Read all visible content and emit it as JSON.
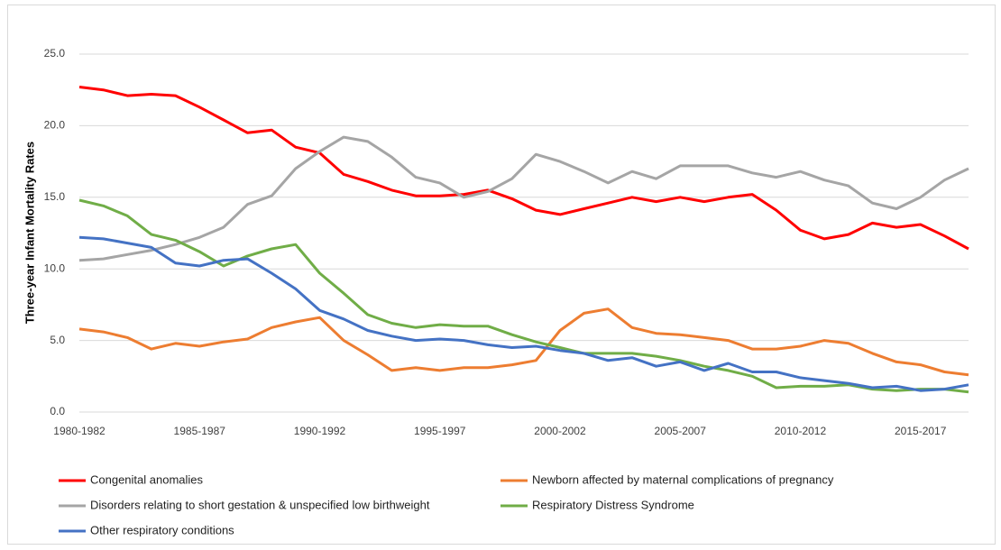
{
  "chart_data": {
    "type": "line",
    "y_label": "Three-year Infant Mortality Rates",
    "categories": [
      "1980-1982",
      null,
      null,
      null,
      null,
      "1985-1987",
      null,
      null,
      null,
      null,
      "1990-1992",
      null,
      null,
      null,
      null,
      "1995-1997",
      null,
      null,
      null,
      null,
      "2000-2002",
      null,
      null,
      null,
      null,
      "2005-2007",
      null,
      null,
      null,
      null,
      "2010-2012",
      null,
      null,
      null,
      null,
      "2015-2017",
      null,
      null
    ],
    "ylim": [
      0,
      25
    ],
    "yticks": [
      {
        "value": 0,
        "label": "0.0"
      },
      {
        "value": 5,
        "label": "5.0"
      },
      {
        "value": 10,
        "label": "10.0"
      },
      {
        "value": 15,
        "label": "15.0"
      },
      {
        "value": 20,
        "label": "20.0"
      },
      {
        "value": 25,
        "label": "25.0"
      }
    ],
    "grid": true,
    "legend": "bottom",
    "series": [
      {
        "name": "Congenital anomalies",
        "color": "#ff0000",
        "values": [
          22.7,
          22.5,
          22.1,
          22.2,
          22.1,
          21.3,
          20.4,
          19.5,
          19.7,
          18.5,
          18.1,
          16.6,
          16.1,
          15.5,
          15.1,
          15.1,
          15.2,
          15.5,
          14.9,
          14.1,
          13.8,
          14.2,
          14.6,
          15.0,
          14.7,
          15.0,
          14.7,
          15.0,
          15.2,
          14.1,
          12.7,
          12.1,
          12.4,
          13.2,
          12.9,
          13.1,
          12.3,
          11.4
        ]
      },
      {
        "name": "Newborn affected by maternal complications of pregnancy",
        "color": "#ed7d31",
        "values": [
          5.8,
          5.6,
          5.2,
          4.4,
          4.8,
          4.6,
          4.9,
          5.1,
          5.9,
          6.3,
          6.6,
          5.0,
          4.0,
          2.9,
          3.1,
          2.9,
          3.1,
          3.1,
          3.3,
          3.6,
          5.7,
          6.9,
          7.2,
          5.9,
          5.5,
          5.4,
          5.2,
          5.0,
          4.4,
          4.4,
          4.6,
          5.0,
          4.8,
          4.1,
          3.5,
          3.3,
          2.8,
          2.6
        ]
      },
      {
        "name": "Disorders relating to short gestation & unspecified low birthweight",
        "color": "#a5a5a5",
        "values": [
          10.6,
          10.7,
          11.0,
          11.3,
          11.7,
          12.2,
          12.9,
          14.5,
          15.1,
          17.0,
          18.2,
          19.2,
          18.9,
          17.8,
          16.4,
          16.0,
          15.0,
          15.4,
          16.3,
          18.0,
          17.5,
          16.8,
          16.0,
          16.8,
          16.3,
          17.2,
          17.2,
          17.2,
          16.7,
          16.4,
          16.8,
          16.2,
          15.8,
          14.6,
          14.2,
          15.0,
          16.2,
          17.0
        ]
      },
      {
        "name": "Respiratory Distress Syndrome",
        "color": "#70ad47",
        "values": [
          14.8,
          14.4,
          13.7,
          12.4,
          12.0,
          11.2,
          10.2,
          10.9,
          11.4,
          11.7,
          9.7,
          8.3,
          6.8,
          6.2,
          5.9,
          6.1,
          6.0,
          6.0,
          5.4,
          4.9,
          4.5,
          4.1,
          4.1,
          4.1,
          3.9,
          3.6,
          3.2,
          2.9,
          2.5,
          1.7,
          1.8,
          1.8,
          1.9,
          1.6,
          1.5,
          1.6,
          1.6,
          1.4
        ]
      },
      {
        "name": "Other respiratory conditions",
        "color": "#4472c4",
        "values": [
          12.2,
          12.1,
          11.8,
          11.5,
          10.4,
          10.2,
          10.6,
          10.7,
          9.7,
          8.6,
          7.1,
          6.5,
          5.7,
          5.3,
          5.0,
          5.1,
          5.0,
          4.7,
          4.5,
          4.6,
          4.3,
          4.1,
          3.6,
          3.8,
          3.2,
          3.5,
          2.9,
          3.4,
          2.8,
          2.8,
          2.4,
          2.2,
          2.0,
          1.7,
          1.8,
          1.5,
          1.6,
          1.9
        ]
      }
    ]
  }
}
